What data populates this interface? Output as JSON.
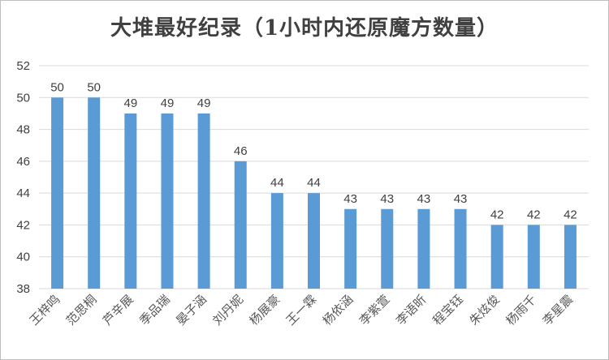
{
  "chart_data": {
    "type": "bar",
    "title": "大堆最好纪录（1小时内还原魔方数量）",
    "categories": [
      "王梓鸣",
      "范思桐",
      "芦辛展",
      "季品瑞",
      "晏子涵",
      "刘丹妮",
      "杨展豪",
      "王一霖",
      "杨依涵",
      "李紫萱",
      "李语昕",
      "程宝钰",
      "朱炫俊",
      "杨雨千",
      "李星震"
    ],
    "values": [
      50,
      50,
      49,
      49,
      49,
      46,
      44,
      44,
      43,
      43,
      43,
      43,
      42,
      42,
      42
    ],
    "ylim": [
      38,
      52
    ],
    "yticks": [
      38,
      40,
      42,
      44,
      46,
      48,
      50,
      52
    ],
    "grid": true,
    "legend": "none",
    "colors": {
      "bar": "#5b9bd5",
      "grid": "#d9d9d9",
      "text": "#404040"
    }
  }
}
